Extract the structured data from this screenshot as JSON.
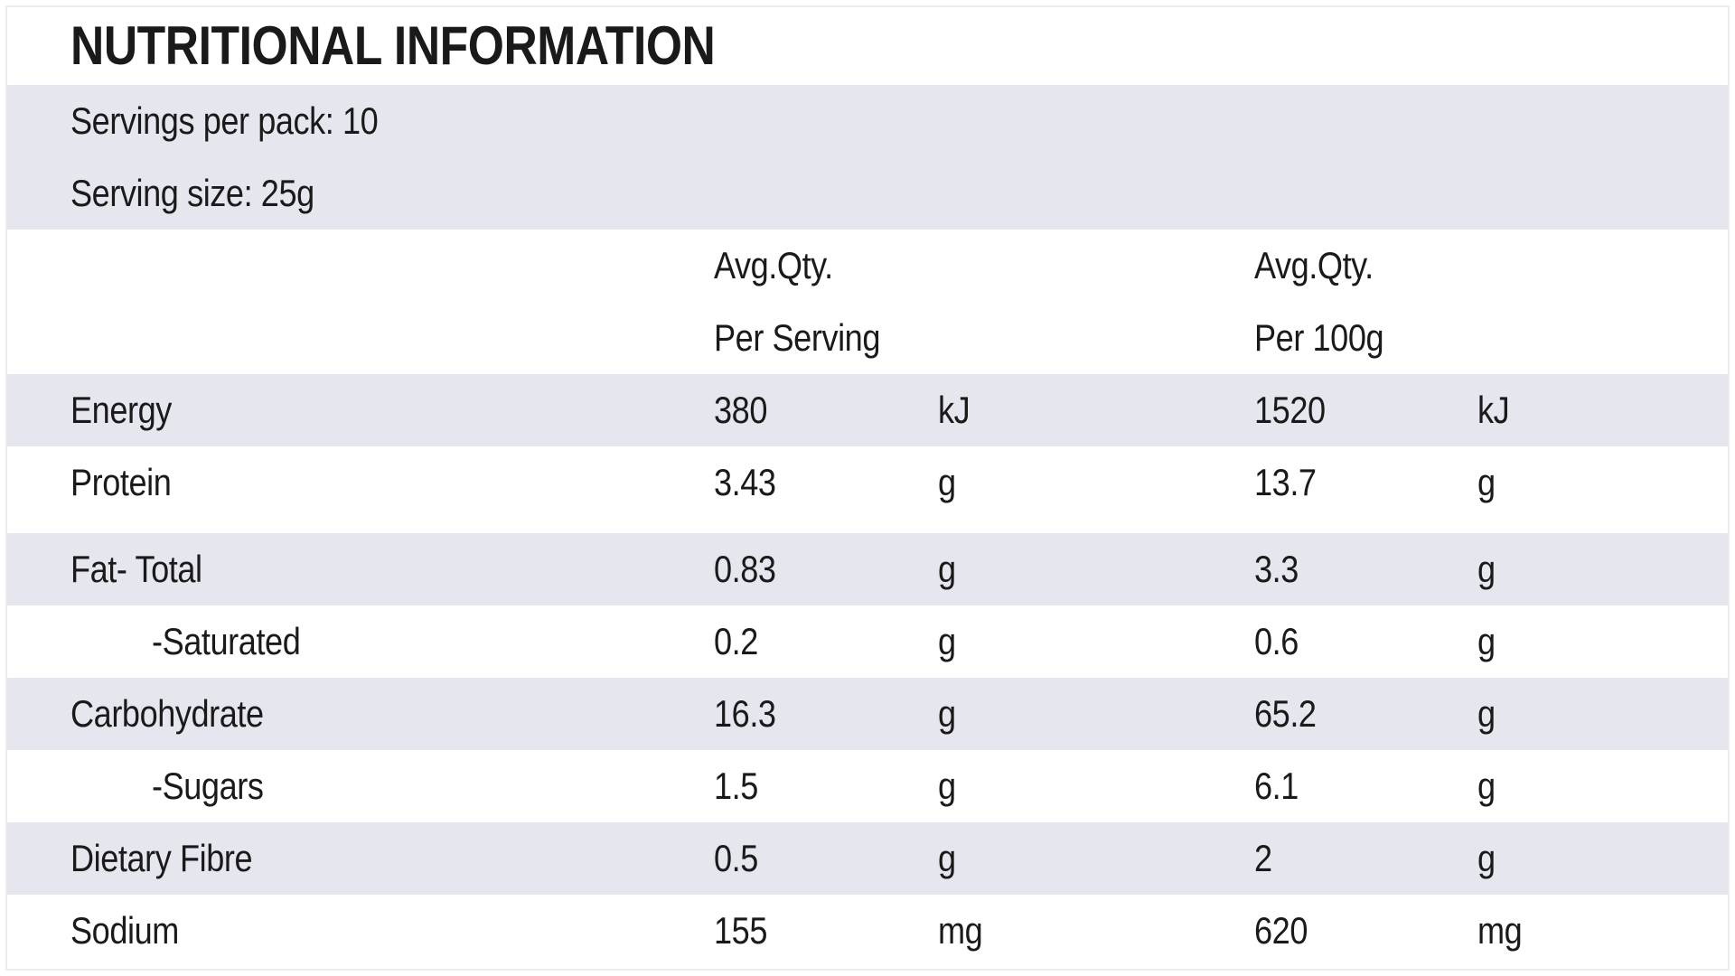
{
  "title": "NUTRITIONAL INFORMATION",
  "servings_per_pack": "Servings per pack: 10",
  "serving_size": "Serving size: 25g",
  "header": {
    "col1_line1": "Avg.Qty.",
    "col1_line2": "Per Serving",
    "col2_line1": "Avg.Qty.",
    "col2_line2": "Per 100g"
  },
  "colors": {
    "shaded_row": "#e5e6ee",
    "text": "#1a1a1a"
  },
  "rows": [
    {
      "name": "Energy",
      "per_serving": "380",
      "unit1": "kJ",
      "per_100g": "1520",
      "unit2": "kJ"
    },
    {
      "name": "Protein",
      "per_serving": "3.43",
      "unit1": "g",
      "per_100g": "13.7",
      "unit2": "g"
    },
    {
      "name": "Fat- Total",
      "per_serving": "0.83",
      "unit1": "g",
      "per_100g": "3.3",
      "unit2": "g"
    },
    {
      "name": "-Saturated",
      "per_serving": "0.2",
      "unit1": "g",
      "per_100g": "0.6",
      "unit2": "g"
    },
    {
      "name": "Carbohydrate",
      "per_serving": "16.3",
      "unit1": "g",
      "per_100g": "65.2",
      "unit2": "g"
    },
    {
      "name": "-Sugars",
      "per_serving": "1.5",
      "unit1": "g",
      "per_100g": "6.1",
      "unit2": "g"
    },
    {
      "name": "Dietary Fibre",
      "per_serving": "0.5",
      "unit1": "g",
      "per_100g": "2",
      "unit2": "g"
    },
    {
      "name": "Sodium",
      "per_serving": "155",
      "unit1": "mg",
      "per_100g": "620",
      "unit2": "mg"
    }
  ]
}
